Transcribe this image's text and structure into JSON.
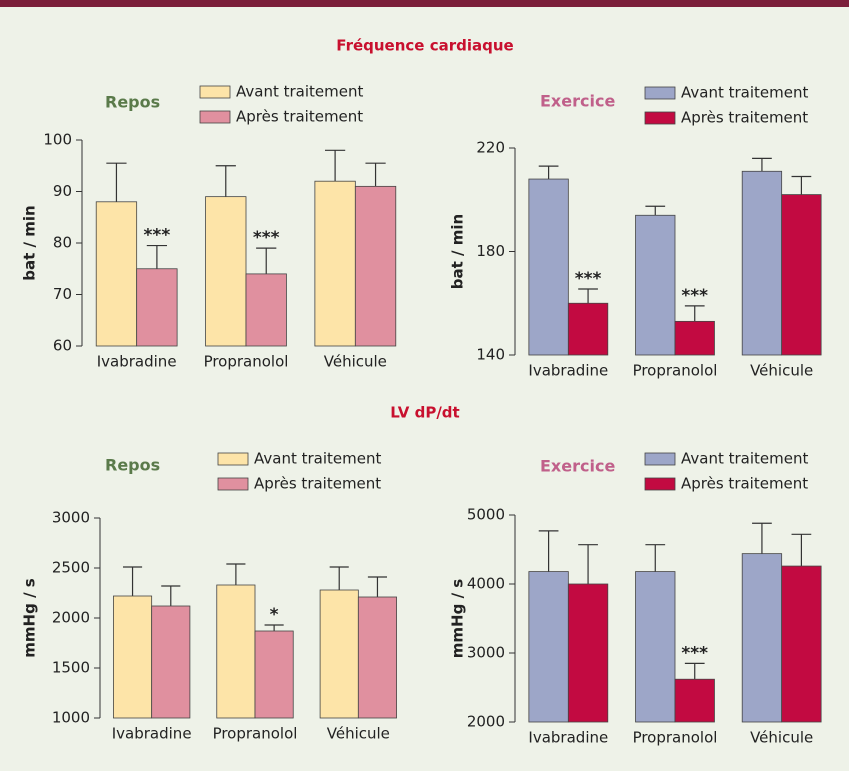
{
  "titles": [
    "Fréquence cardiaque",
    "LV dP/dt"
  ],
  "chart_data": [
    {
      "type": "bar",
      "title": "Repos",
      "ylabel": "bat / min",
      "categories": [
        "Ivabradine",
        "Propranolol",
        "Véhicule"
      ],
      "series": [
        {
          "name": "Avant traitement",
          "color": "#fde4a8",
          "values": [
            88,
            89,
            92
          ],
          "errors": [
            7.5,
            6,
            6
          ]
        },
        {
          "name": "Après traitement",
          "color": "#e0909f",
          "values": [
            75,
            74,
            91
          ],
          "errors": [
            4.5,
            5,
            4.5
          ],
          "significance": [
            "***",
            "***",
            null
          ]
        }
      ],
      "ylim": [
        60,
        100
      ],
      "yticks": [
        60,
        70,
        80,
        90,
        100
      ]
    },
    {
      "type": "bar",
      "title": "Exercice",
      "ylabel": "bat / min",
      "categories": [
        "Ivabradine",
        "Propranolol",
        "Véhicule"
      ],
      "series": [
        {
          "name": "Avant traitement",
          "color": "#9da6c8",
          "values": [
            208,
            194,
            211
          ],
          "errors": [
            5,
            3.5,
            5
          ]
        },
        {
          "name": "Après traitement",
          "color": "#c20a41",
          "values": [
            160,
            153,
            202
          ],
          "errors": [
            5.5,
            6,
            7
          ],
          "significance": [
            "***",
            "***",
            null
          ]
        }
      ],
      "ylim": [
        140,
        220
      ],
      "yticks": [
        140,
        180,
        220
      ]
    },
    {
      "type": "bar",
      "title": "Repos",
      "ylabel": "mmHg / s",
      "categories": [
        "Ivabradine",
        "Propranolol",
        "Véhicule"
      ],
      "series": [
        {
          "name": "Avant traitement",
          "color": "#fde4a8",
          "values": [
            2220,
            2330,
            2280
          ],
          "errors": [
            290,
            210,
            230
          ]
        },
        {
          "name": "Après traitement",
          "color": "#e0909f",
          "values": [
            2120,
            1870,
            2210
          ],
          "errors": [
            200,
            60,
            200
          ],
          "significance": [
            null,
            "*",
            null
          ]
        }
      ],
      "ylim": [
        1000,
        3000
      ],
      "yticks": [
        1000,
        1500,
        2000,
        2500,
        3000
      ]
    },
    {
      "type": "bar",
      "title": "Exercice",
      "ylabel": "mmHg / s",
      "categories": [
        "Ivabradine",
        "Propranolol",
        "Véhicule"
      ],
      "series": [
        {
          "name": "Avant traitement",
          "color": "#9da6c8",
          "values": [
            4180,
            4180,
            4440
          ],
          "errors": [
            590,
            390,
            440
          ]
        },
        {
          "name": "Après traitement",
          "color": "#c20a41",
          "values": [
            4000,
            2620,
            4260
          ],
          "errors": [
            570,
            230,
            460
          ],
          "significance": [
            null,
            "***",
            null
          ]
        }
      ],
      "ylim": [
        2000,
        5000
      ],
      "yticks": [
        2000,
        3000,
        4000,
        5000
      ]
    }
  ]
}
